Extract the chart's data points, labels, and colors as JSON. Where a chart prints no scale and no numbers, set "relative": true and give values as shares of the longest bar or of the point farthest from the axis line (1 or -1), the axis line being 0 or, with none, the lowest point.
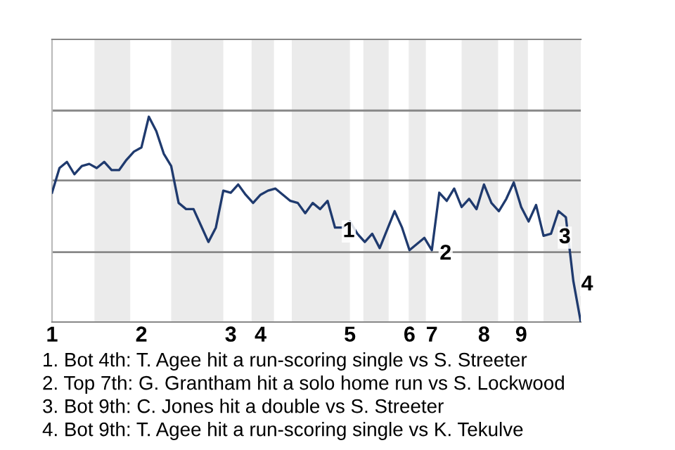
{
  "chart_data": {
    "type": "line",
    "relative": true,
    "marker": "none",
    "line_style": "solid",
    "ref_lines": [
      {
        "axis": "y",
        "value": 0.34,
        "color": "#888888"
      },
      {
        "axis": "y",
        "value": 0.69,
        "color": "#888888"
      },
      {
        "axis": "y",
        "value": 1.03,
        "color": "#888888"
      }
    ],
    "categories": [
      "1",
      null,
      null,
      null,
      null,
      null,
      null,
      null,
      null,
      null,
      null,
      null,
      "2",
      null,
      null,
      null,
      null,
      null,
      null,
      null,
      null,
      null,
      null,
      null,
      "3",
      null,
      null,
      null,
      "4",
      null,
      null,
      null,
      null,
      null,
      null,
      null,
      null,
      null,
      null,
      null,
      "5",
      null,
      null,
      null,
      null,
      null,
      null,
      null,
      "6",
      null,
      null,
      "7",
      null,
      null,
      null,
      null,
      null,
      null,
      "8",
      null,
      null,
      null,
      null,
      "9",
      null,
      null,
      null,
      null,
      null,
      null,
      null,
      null
    ],
    "series": [
      {
        "color": "#1f3a6e",
        "values": [
          0.63,
          0.75,
          0.78,
          0.72,
          0.76,
          0.77,
          0.75,
          0.78,
          0.74,
          0.74,
          0.79,
          0.83,
          0.85,
          1.0,
          0.93,
          0.82,
          0.76,
          0.58,
          0.55,
          0.55,
          0.47,
          0.39,
          0.46,
          0.64,
          0.63,
          0.67,
          0.62,
          0.58,
          0.62,
          0.64,
          0.65,
          0.62,
          0.59,
          0.58,
          0.53,
          0.58,
          0.55,
          0.59,
          0.46,
          0.46,
          0.49,
          0.43,
          0.39,
          0.43,
          0.36,
          0.45,
          0.54,
          0.46,
          0.35,
          0.38,
          0.41,
          0.35,
          0.63,
          0.59,
          0.65,
          0.56,
          0.6,
          0.55,
          0.67,
          0.58,
          0.54,
          0.6,
          0.68,
          0.56,
          0.49,
          0.57,
          0.42,
          0.43,
          0.54,
          0.51,
          0.2,
          0
        ]
      }
    ],
    "annotations": [
      "1",
      "2",
      "3",
      "4",
      "1. Bot 4th: T. Agee hit a run-scoring single vs S. Streeter",
      "2. Top 7th: G. Grantham hit a solo home run vs S. Lockwood",
      "3. Bot 9th: C. Jones hit a double vs S. Streeter",
      "4. Bot 9th: T. Agee hit a run-scoring single vs K. Tekulve"
    ]
  }
}
